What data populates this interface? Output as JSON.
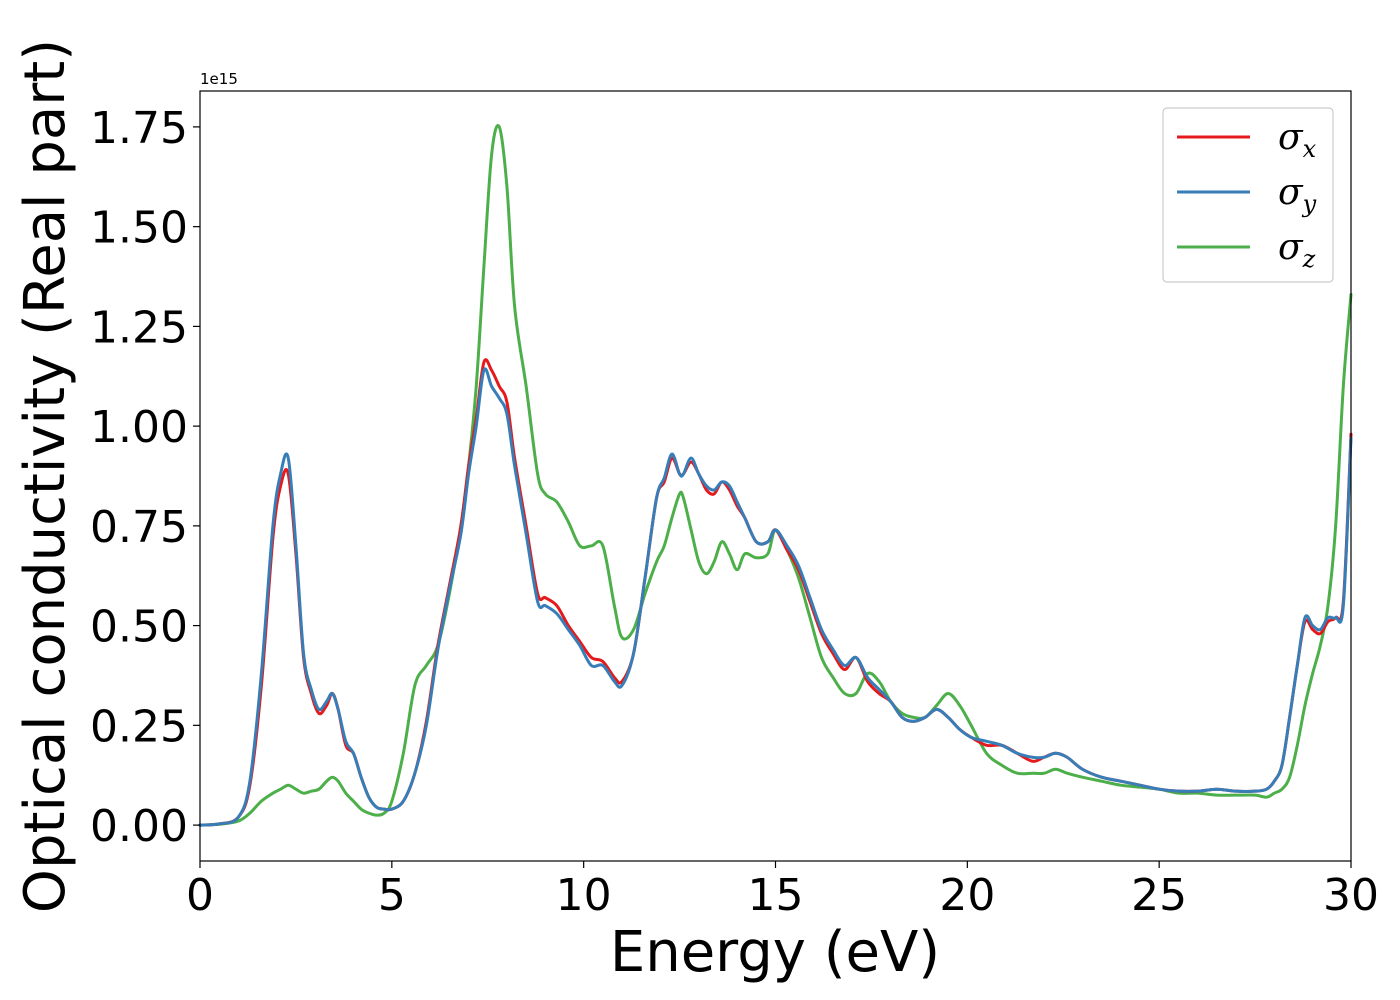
{
  "chart_data": {
    "type": "line",
    "title": "",
    "xlabel": "Energy (eV)",
    "ylabel": "Optical conductivity (Real part)",
    "y_offset_label": "1e15",
    "xlim": [
      0,
      30
    ],
    "ylim": [
      -0.09,
      1.84
    ],
    "xticks": [
      0,
      5,
      10,
      15,
      20,
      25,
      30
    ],
    "xtick_labels": [
      "0",
      "5",
      "10",
      "15",
      "20",
      "25",
      "30"
    ],
    "yticks": [
      0,
      0.25,
      0.5,
      0.75,
      1.0,
      1.25,
      1.5,
      1.75
    ],
    "ytick_labels": [
      "0.00",
      "0.25",
      "0.50",
      "0.75",
      "1.00",
      "1.25",
      "1.50",
      "1.75"
    ],
    "grid": false,
    "legend_position": "top-right",
    "series": [
      {
        "name": "σx",
        "symbol": "σ",
        "subscript": "x",
        "color": "#e41a1c",
        "x": [
          0,
          0.5,
          1.0,
          1.3,
          1.6,
          1.9,
          2.1,
          2.3,
          2.5,
          2.7,
          2.9,
          3.1,
          3.3,
          3.45,
          3.6,
          3.8,
          4.0,
          4.2,
          4.4,
          4.6,
          4.8,
          5.0,
          5.3,
          5.6,
          5.9,
          6.2,
          6.5,
          6.8,
          7.0,
          7.2,
          7.4,
          7.6,
          7.8,
          8.0,
          8.2,
          8.5,
          8.8,
          9.0,
          9.3,
          9.6,
          9.9,
          10.2,
          10.5,
          10.8,
          11.0,
          11.3,
          11.6,
          11.9,
          12.1,
          12.3,
          12.5,
          12.6,
          12.8,
          13.0,
          13.2,
          13.4,
          13.6,
          13.8,
          14.0,
          14.2,
          14.5,
          14.8,
          15.0,
          15.3,
          15.6,
          15.9,
          16.2,
          16.5,
          16.8,
          17.1,
          17.4,
          17.7,
          18.0,
          18.3,
          18.6,
          18.9,
          19.2,
          19.5,
          19.8,
          20.1,
          20.5,
          20.9,
          21.3,
          21.7,
          22.0,
          22.3,
          22.6,
          23.0,
          23.5,
          24.0,
          24.5,
          25.0,
          25.5,
          26.0,
          26.5,
          27.0,
          27.5,
          27.8,
          28.0,
          28.2,
          28.4,
          28.6,
          28.8,
          29.0,
          29.2,
          29.4,
          29.6,
          29.8,
          30.0
        ],
        "y": [
          0.0,
          0.003,
          0.02,
          0.1,
          0.35,
          0.72,
          0.85,
          0.88,
          0.68,
          0.42,
          0.33,
          0.28,
          0.3,
          0.33,
          0.29,
          0.2,
          0.18,
          0.12,
          0.07,
          0.045,
          0.04,
          0.04,
          0.06,
          0.13,
          0.26,
          0.45,
          0.6,
          0.75,
          0.9,
          1.02,
          1.16,
          1.14,
          1.1,
          1.06,
          0.92,
          0.75,
          0.58,
          0.57,
          0.55,
          0.5,
          0.46,
          0.42,
          0.41,
          0.37,
          0.36,
          0.43,
          0.62,
          0.82,
          0.86,
          0.92,
          0.88,
          0.88,
          0.91,
          0.88,
          0.84,
          0.83,
          0.86,
          0.84,
          0.8,
          0.77,
          0.71,
          0.71,
          0.74,
          0.69,
          0.64,
          0.56,
          0.48,
          0.43,
          0.39,
          0.42,
          0.36,
          0.33,
          0.31,
          0.27,
          0.26,
          0.27,
          0.29,
          0.27,
          0.24,
          0.22,
          0.2,
          0.2,
          0.18,
          0.16,
          0.17,
          0.18,
          0.17,
          0.14,
          0.12,
          0.11,
          0.1,
          0.09,
          0.085,
          0.085,
          0.09,
          0.085,
          0.085,
          0.09,
          0.11,
          0.15,
          0.27,
          0.4,
          0.51,
          0.49,
          0.48,
          0.51,
          0.52,
          0.56,
          0.98
        ]
      },
      {
        "name": "σy",
        "symbol": "σ",
        "subscript": "y",
        "color": "#377eb8",
        "x": [
          0,
          0.5,
          1.0,
          1.3,
          1.6,
          1.9,
          2.1,
          2.3,
          2.5,
          2.7,
          2.9,
          3.1,
          3.3,
          3.45,
          3.6,
          3.8,
          4.0,
          4.2,
          4.4,
          4.6,
          4.8,
          5.0,
          5.3,
          5.6,
          5.9,
          6.2,
          6.5,
          6.8,
          7.0,
          7.2,
          7.4,
          7.6,
          7.8,
          8.0,
          8.2,
          8.5,
          8.8,
          9.0,
          9.3,
          9.6,
          9.9,
          10.2,
          10.5,
          10.8,
          11.0,
          11.3,
          11.6,
          11.9,
          12.1,
          12.3,
          12.5,
          12.6,
          12.8,
          13.0,
          13.2,
          13.4,
          13.6,
          13.8,
          14.0,
          14.2,
          14.5,
          14.8,
          15.0,
          15.3,
          15.6,
          15.9,
          16.2,
          16.5,
          16.8,
          17.1,
          17.4,
          17.7,
          18.0,
          18.3,
          18.6,
          18.9,
          19.2,
          19.5,
          19.8,
          20.1,
          20.5,
          20.9,
          21.3,
          21.7,
          22.0,
          22.3,
          22.6,
          23.0,
          23.5,
          24.0,
          24.5,
          25.0,
          25.5,
          26.0,
          26.5,
          27.0,
          27.5,
          27.8,
          28.0,
          28.2,
          28.4,
          28.6,
          28.8,
          29.0,
          29.2,
          29.4,
          29.6,
          29.8,
          30.0
        ],
        "y": [
          0.0,
          0.003,
          0.02,
          0.11,
          0.38,
          0.75,
          0.88,
          0.92,
          0.7,
          0.43,
          0.34,
          0.29,
          0.31,
          0.33,
          0.29,
          0.21,
          0.18,
          0.12,
          0.07,
          0.045,
          0.04,
          0.04,
          0.06,
          0.13,
          0.25,
          0.44,
          0.59,
          0.73,
          0.88,
          1.0,
          1.14,
          1.1,
          1.07,
          1.03,
          0.9,
          0.73,
          0.56,
          0.55,
          0.53,
          0.49,
          0.45,
          0.4,
          0.4,
          0.36,
          0.35,
          0.43,
          0.62,
          0.82,
          0.87,
          0.93,
          0.88,
          0.88,
          0.92,
          0.88,
          0.85,
          0.84,
          0.86,
          0.85,
          0.81,
          0.77,
          0.71,
          0.71,
          0.74,
          0.7,
          0.65,
          0.57,
          0.49,
          0.44,
          0.4,
          0.42,
          0.37,
          0.34,
          0.31,
          0.27,
          0.26,
          0.27,
          0.29,
          0.27,
          0.24,
          0.22,
          0.21,
          0.2,
          0.18,
          0.17,
          0.17,
          0.18,
          0.17,
          0.14,
          0.12,
          0.11,
          0.1,
          0.09,
          0.085,
          0.085,
          0.09,
          0.085,
          0.085,
          0.09,
          0.11,
          0.15,
          0.27,
          0.4,
          0.52,
          0.5,
          0.49,
          0.52,
          0.52,
          0.55,
          0.97
        ]
      },
      {
        "name": "σz",
        "symbol": "σ",
        "subscript": "z",
        "color": "#4daf4a",
        "x": [
          0,
          0.5,
          1.0,
          1.3,
          1.6,
          1.9,
          2.1,
          2.3,
          2.5,
          2.7,
          2.9,
          3.1,
          3.3,
          3.45,
          3.6,
          3.8,
          4.0,
          4.2,
          4.4,
          4.6,
          4.8,
          5.0,
          5.3,
          5.6,
          5.9,
          6.2,
          6.5,
          6.8,
          7.0,
          7.2,
          7.4,
          7.6,
          7.8,
          8.0,
          8.2,
          8.5,
          8.8,
          9.0,
          9.3,
          9.6,
          9.9,
          10.2,
          10.5,
          10.8,
          11.0,
          11.3,
          11.6,
          11.9,
          12.1,
          12.3,
          12.5,
          12.6,
          12.8,
          13.0,
          13.2,
          13.4,
          13.6,
          13.8,
          14.0,
          14.2,
          14.5,
          14.8,
          15.0,
          15.3,
          15.6,
          15.9,
          16.2,
          16.5,
          16.8,
          17.1,
          17.4,
          17.7,
          18.0,
          18.3,
          18.6,
          18.9,
          19.2,
          19.5,
          19.8,
          20.1,
          20.5,
          20.9,
          21.3,
          21.7,
          22.0,
          22.3,
          22.6,
          23.0,
          23.5,
          24.0,
          24.5,
          25.0,
          25.5,
          26.0,
          26.5,
          27.0,
          27.5,
          27.8,
          28.0,
          28.2,
          28.4,
          28.6,
          28.8,
          29.0,
          29.2,
          29.4,
          29.6,
          29.8,
          30.0
        ],
        "y": [
          0.0,
          0.002,
          0.01,
          0.03,
          0.06,
          0.08,
          0.09,
          0.1,
          0.09,
          0.08,
          0.085,
          0.09,
          0.11,
          0.12,
          0.11,
          0.08,
          0.06,
          0.04,
          0.03,
          0.025,
          0.03,
          0.06,
          0.18,
          0.35,
          0.4,
          0.45,
          0.58,
          0.75,
          0.9,
          1.1,
          1.4,
          1.68,
          1.75,
          1.6,
          1.3,
          1.1,
          0.88,
          0.83,
          0.81,
          0.76,
          0.7,
          0.7,
          0.7,
          0.55,
          0.47,
          0.49,
          0.58,
          0.66,
          0.7,
          0.77,
          0.83,
          0.82,
          0.74,
          0.66,
          0.63,
          0.66,
          0.71,
          0.68,
          0.64,
          0.68,
          0.67,
          0.68,
          0.74,
          0.69,
          0.62,
          0.52,
          0.42,
          0.37,
          0.33,
          0.33,
          0.38,
          0.36,
          0.31,
          0.28,
          0.27,
          0.27,
          0.3,
          0.33,
          0.3,
          0.25,
          0.18,
          0.15,
          0.13,
          0.13,
          0.13,
          0.14,
          0.13,
          0.12,
          0.11,
          0.1,
          0.095,
          0.09,
          0.08,
          0.08,
          0.075,
          0.075,
          0.075,
          0.07,
          0.08,
          0.09,
          0.12,
          0.2,
          0.3,
          0.38,
          0.45,
          0.55,
          0.75,
          1.1,
          1.33
        ]
      }
    ]
  }
}
